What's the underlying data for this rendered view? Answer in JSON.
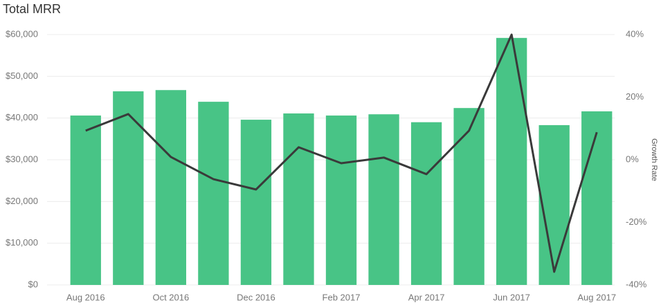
{
  "chart_data": {
    "type": "bar",
    "title": "Total MRR",
    "categories": [
      "Aug 2016",
      null,
      "Oct 2016",
      null,
      "Dec 2016",
      null,
      "Feb 2017",
      null,
      "Apr 2017",
      null,
      "Jun 2017",
      null,
      "Aug 2017"
    ],
    "series": [
      {
        "type": "bar",
        "color": "#48c486",
        "values": [
          40600,
          46400,
          46700,
          43900,
          39600,
          41100,
          40600,
          40900,
          39000,
          42400,
          59200,
          38300,
          41600
        ]
      },
      {
        "type": "line",
        "axis": "y2",
        "color": "#3a3a3a",
        "values": [
          9.3,
          14.6,
          0.9,
          -6.2,
          -9.5,
          4.0,
          -1.1,
          0.7,
          -4.6,
          9.3,
          40.0,
          -35.8,
          8.8
        ]
      }
    ],
    "ylim": [
      0,
      60000
    ],
    "yticks": [
      {
        "value": 0,
        "label": "$0"
      },
      {
        "value": 10000,
        "label": "$10,000"
      },
      {
        "value": 20000,
        "label": "$20,000"
      },
      {
        "value": 30000,
        "label": "$30,000"
      },
      {
        "value": 40000,
        "label": "$40,000"
      },
      {
        "value": 50000,
        "label": "$50,000"
      },
      {
        "value": 60000,
        "label": "$60,000"
      }
    ],
    "y2lim": [
      -40,
      40
    ],
    "y2ticks": [
      {
        "value": -40,
        "label": "-40%"
      },
      {
        "value": -20,
        "label": "-20%"
      },
      {
        "value": 0,
        "label": "0%"
      },
      {
        "value": 20,
        "label": "20%"
      },
      {
        "value": 40,
        "label": "40%"
      }
    ],
    "y2label": "Growth Rate",
    "grid": true
  }
}
